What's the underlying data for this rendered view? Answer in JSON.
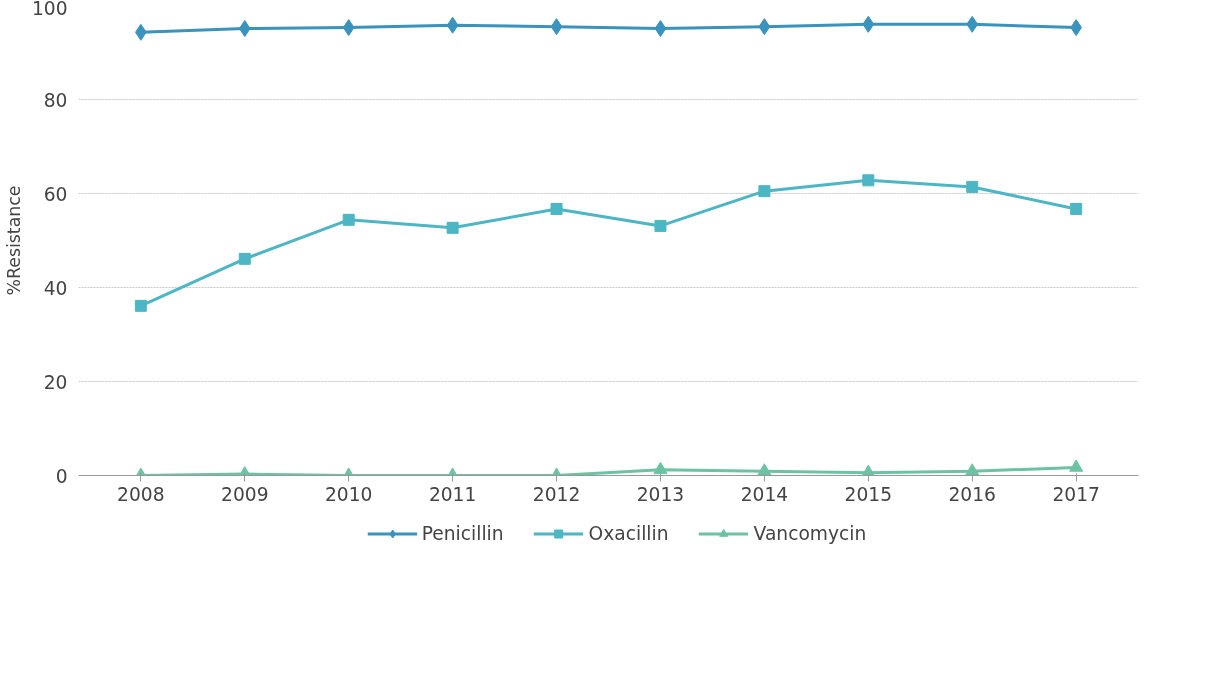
{
  "chart_data": {
    "type": "line",
    "ylabel": "%Resistance",
    "categories": [
      "2008",
      "2009",
      "2010",
      "2011",
      "2012",
      "2013",
      "2014",
      "2015",
      "2016",
      "2017"
    ],
    "series": [
      {
        "name": "Penicillin",
        "color": "#3a93bd",
        "marker": "diamond",
        "values": [
          94.3,
          95.1,
          95.3,
          95.8,
          95.5,
          95.1,
          95.5,
          96.0,
          96.0,
          95.3
        ]
      },
      {
        "name": "Oxacillin",
        "color": "#4cb6c4",
        "marker": "square",
        "values": [
          36.1,
          46.1,
          54.4,
          52.7,
          56.7,
          53.1,
          60.5,
          62.8,
          61.4,
          56.7
        ]
      },
      {
        "name": "Vancomycin",
        "color": "#6cc3a4",
        "marker": "triangle",
        "values": [
          0,
          0.3,
          0,
          0,
          0,
          1.2,
          0.9,
          0.6,
          0.9,
          1.7
        ]
      }
    ],
    "ylim": [
      0,
      100
    ],
    "yticks": [
      0,
      20,
      40,
      60,
      80,
      100
    ],
    "grid": "y",
    "legend": "bottom",
    "line_style": "solid"
  }
}
